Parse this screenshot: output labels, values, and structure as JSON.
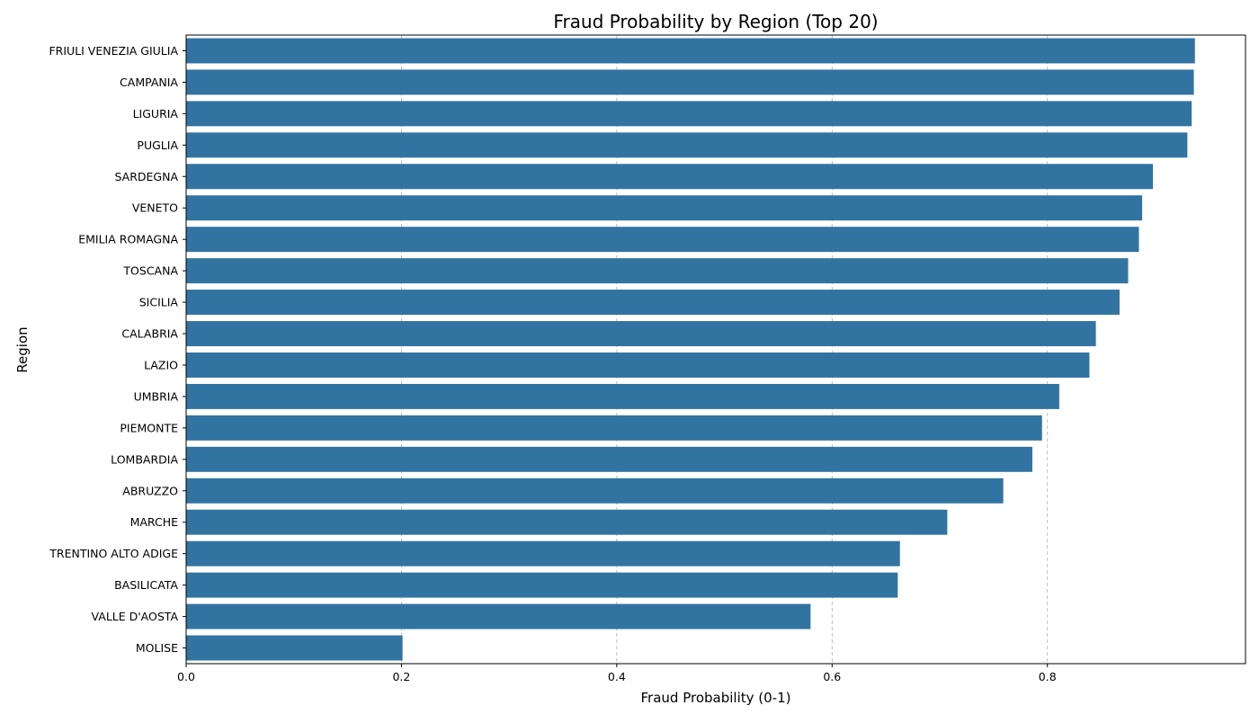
{
  "chart_data": {
    "type": "bar",
    "orientation": "horizontal",
    "title": "Fraud Probability by Region (Top 20)",
    "xlabel": "Fraud Probability (0-1)",
    "ylabel": "Region",
    "xlim": [
      0,
      0.984
    ],
    "xticks": [
      {
        "value": 0.0,
        "label": "0.0"
      },
      {
        "value": 0.2,
        "label": "0.2"
      },
      {
        "value": 0.4,
        "label": "0.4"
      },
      {
        "value": 0.6,
        "label": "0.6"
      },
      {
        "value": 0.8,
        "label": "0.8"
      }
    ],
    "grid": "x, dashed",
    "bar_color": "#3274a1",
    "grid_color": "#b0b0b0",
    "categories": [
      "FRIULI VENEZIA GIULIA",
      "CAMPANIA",
      "LIGURIA",
      "PUGLIA",
      "SARDEGNA",
      "VENETO",
      "EMILIA ROMAGNA",
      "TOSCANA",
      "SICILIA",
      "CALABRIA",
      "LAZIO",
      "UMBRIA",
      "PIEMONTE",
      "LOMBARDIA",
      "ABRUZZO",
      "MARCHE",
      "TRENTINO ALTO ADIGE",
      "BASILICATA",
      "VALLE D'AOSTA",
      "MOLISE"
    ],
    "values": [
      0.937,
      0.936,
      0.934,
      0.93,
      0.898,
      0.888,
      0.885,
      0.875,
      0.867,
      0.845,
      0.839,
      0.811,
      0.795,
      0.786,
      0.759,
      0.707,
      0.663,
      0.661,
      0.58,
      0.201
    ]
  }
}
